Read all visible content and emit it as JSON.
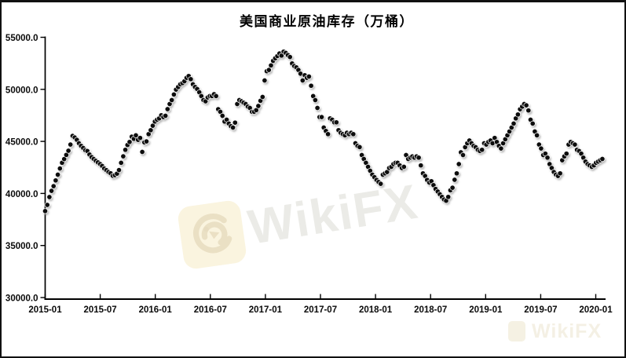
{
  "title_block": {
    "text": "美国商业原油库存（万桶）"
  },
  "watermark": {
    "brand": "WikiFX",
    "logo": "wikifx-eagle-logo",
    "logo_bg_color": "#faf4df",
    "logo_glyph_color": "#e7dcc0",
    "text_color": "#ebebe7"
  },
  "chart_data": {
    "type": "scatter",
    "title": "美国商业原油库存（万桶）",
    "xlabel": "",
    "ylabel": "",
    "grid": false,
    "legend_position": "none",
    "marker": {
      "shape": "circle",
      "color": "#0e0e0e",
      "shadow": true
    },
    "axis_color": "#000000",
    "tick_label_color": "#0a0a0a",
    "ylim": [
      30000,
      55000
    ],
    "y_tick_labels": [
      "55000.0",
      "50000.0",
      "45000.0",
      "40000.0",
      "35000.0",
      "30000.0"
    ],
    "y_tick_values": [
      55000,
      50000,
      45000,
      40000,
      35000,
      30000
    ],
    "x_tick_labels": [
      "2015-01",
      "2015-07",
      "2016-01",
      "2016-07",
      "2017-01",
      "2017-07",
      "2018-01",
      "2018-07",
      "2019-01",
      "2019-07",
      "2020-01"
    ],
    "x_unit": "weekly observations",
    "x_start_year": 2015.0,
    "x_step_years": 0.0191655,
    "series": [
      {
        "name": "美国商业原油库存",
        "values": [
          38300,
          38900,
          39650,
          40250,
          40700,
          41250,
          41800,
          42400,
          42950,
          43300,
          43700,
          44100,
          44700,
          45530,
          45380,
          45150,
          44820,
          44570,
          44370,
          44150,
          44070,
          43740,
          43490,
          43310,
          43140,
          42990,
          42820,
          42640,
          42400,
          42240,
          42060,
          41940,
          41700,
          41760,
          41900,
          42250,
          42940,
          43570,
          44190,
          44650,
          44950,
          45450,
          45250,
          45580,
          45150,
          45330,
          43990,
          44900,
          45000,
          45700,
          46080,
          46510,
          46910,
          47080,
          47210,
          47510,
          47340,
          47460,
          48100,
          48590,
          48970,
          49500,
          49980,
          50230,
          50480,
          50600,
          50780,
          51110,
          51280,
          50980,
          50480,
          50230,
          50030,
          49720,
          49350,
          48970,
          48850,
          49220,
          49350,
          49350,
          49530,
          49350,
          48090,
          47840,
          47460,
          46910,
          47080,
          46710,
          46460,
          46330,
          46800,
          48590,
          48970,
          48850,
          48715,
          48590,
          48340,
          48210,
          47840,
          47840,
          48000,
          48400,
          48900,
          49270,
          50850,
          51740,
          51860,
          52300,
          52740,
          52990,
          53200,
          53450,
          53240,
          53620,
          53500,
          53290,
          53110,
          52490,
          52240,
          52110,
          51860,
          51500,
          50850,
          51360,
          51110,
          51230,
          50350,
          49350,
          48970,
          48210,
          47340,
          47340,
          46330,
          46000,
          45700,
          47210,
          47080,
          46830,
          46830,
          46080,
          45830,
          45700,
          45580,
          45830,
          45700,
          45830,
          45700,
          44820,
          44570,
          44450,
          43690,
          43310,
          42940,
          42560,
          42180,
          41800,
          41560,
          41300,
          41100,
          40930,
          41800,
          41930,
          42060,
          42440,
          42560,
          42820,
          42940,
          42940,
          42690,
          42440,
          42560,
          43690,
          43310,
          43440,
          43560,
          43440,
          43560,
          43440,
          42690,
          41930,
          41680,
          41300,
          41050,
          41180,
          40800,
          40430,
          40180,
          39920,
          39670,
          39420,
          39300,
          39670,
          40300,
          40550,
          41310,
          41930,
          42820,
          43950,
          43690,
          44440,
          44820,
          45080,
          44820,
          44570,
          44440,
          44190,
          44070,
          44190,
          44820,
          44700,
          44950,
          45080,
          44820,
          45330,
          44950,
          44570,
          44320,
          44820,
          45200,
          45580,
          45950,
          46330,
          46710,
          47210,
          47590,
          48090,
          48340,
          48590,
          48470,
          47970,
          47080,
          46710,
          45950,
          45580,
          44700,
          44320,
          43690,
          43820,
          43440,
          42820,
          42440,
          42060,
          41810,
          41680,
          41930,
          43190,
          43560,
          43820,
          44700,
          44950,
          44820,
          44700,
          44190,
          44070,
          43820,
          43440,
          43060,
          42820,
          42690,
          42560,
          42690,
          42940,
          43060,
          43190,
          43310
        ]
      }
    ]
  }
}
